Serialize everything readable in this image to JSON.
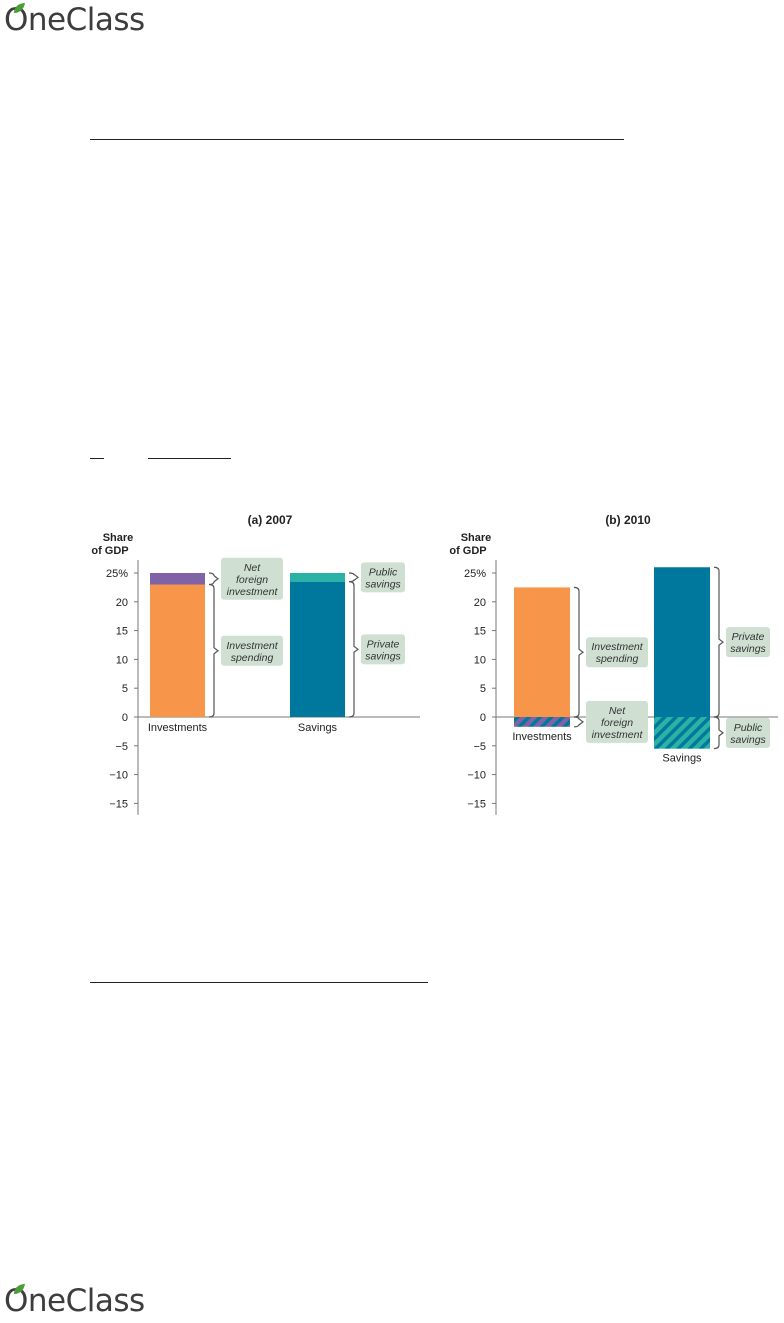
{
  "brand": {
    "name": "OneClass",
    "leaf_color": "#4a9e3a"
  },
  "chart_data": [
    {
      "type": "bar",
      "title": "(a) 2007",
      "ylabel": "Share of GDP",
      "ylim": [
        -15,
        25
      ],
      "yticks": [
        "25%",
        "20",
        "15",
        "10",
        "5",
        "0",
        "−5",
        "−10",
        "−15"
      ],
      "categories": [
        "Investments",
        "Savings"
      ],
      "series": [
        {
          "name": "Investment spending",
          "category": "Investments",
          "values": [
            0,
            23
          ],
          "color": "#f7964a"
        },
        {
          "name": "Net foreign investment",
          "category": "Investments",
          "values": [
            23,
            25
          ],
          "color": "#8062a6"
        },
        {
          "name": "Private savings",
          "category": "Savings",
          "values": [
            0,
            23.5
          ],
          "color": "#00789e"
        },
        {
          "name": "Public savings",
          "category": "Savings",
          "values": [
            23.5,
            25
          ],
          "color": "#2ab3a5"
        }
      ],
      "annotations": [
        {
          "text": [
            "Net",
            "foreign",
            "investment"
          ],
          "target": "Net foreign investment"
        },
        {
          "text": [
            "Investment",
            "spending"
          ],
          "target": "Investment spending"
        },
        {
          "text": [
            "Public",
            "savings"
          ],
          "target": "Public savings"
        },
        {
          "text": [
            "Private",
            "savings"
          ],
          "target": "Private savings"
        }
      ]
    },
    {
      "type": "bar",
      "title": "(b) 2010",
      "ylabel": "Share of GDP",
      "ylim": [
        -15,
        25
      ],
      "yticks": [
        "25%",
        "20",
        "15",
        "10",
        "5",
        "0",
        "−5",
        "−10",
        "−15"
      ],
      "categories": [
        "Investments",
        "Savings"
      ],
      "series": [
        {
          "name": "Investment spending",
          "category": "Investments",
          "values": [
            0,
            22.5
          ],
          "color": "#f7964a"
        },
        {
          "name": "Net foreign investment",
          "category": "Investments",
          "values": [
            -1.7,
            0
          ],
          "color": "#8062a6",
          "pattern": "hatched"
        },
        {
          "name": "Private savings",
          "category": "Savings",
          "values": [
            0,
            26
          ],
          "color": "#00789e"
        },
        {
          "name": "Public savings",
          "category": "Savings",
          "values": [
            -5.5,
            0
          ],
          "color": "#2ab3a5",
          "pattern": "hatched"
        }
      ],
      "annotations": [
        {
          "text": [
            "Investment",
            "spending"
          ],
          "target": "Investment spending"
        },
        {
          "text": [
            "Net",
            "foreign",
            "investment"
          ],
          "target": "Net foreign investment"
        },
        {
          "text": [
            "Private",
            "savings"
          ],
          "target": "Private savings"
        },
        {
          "text": [
            "Public",
            "savings"
          ],
          "target": "Public savings"
        }
      ]
    }
  ]
}
